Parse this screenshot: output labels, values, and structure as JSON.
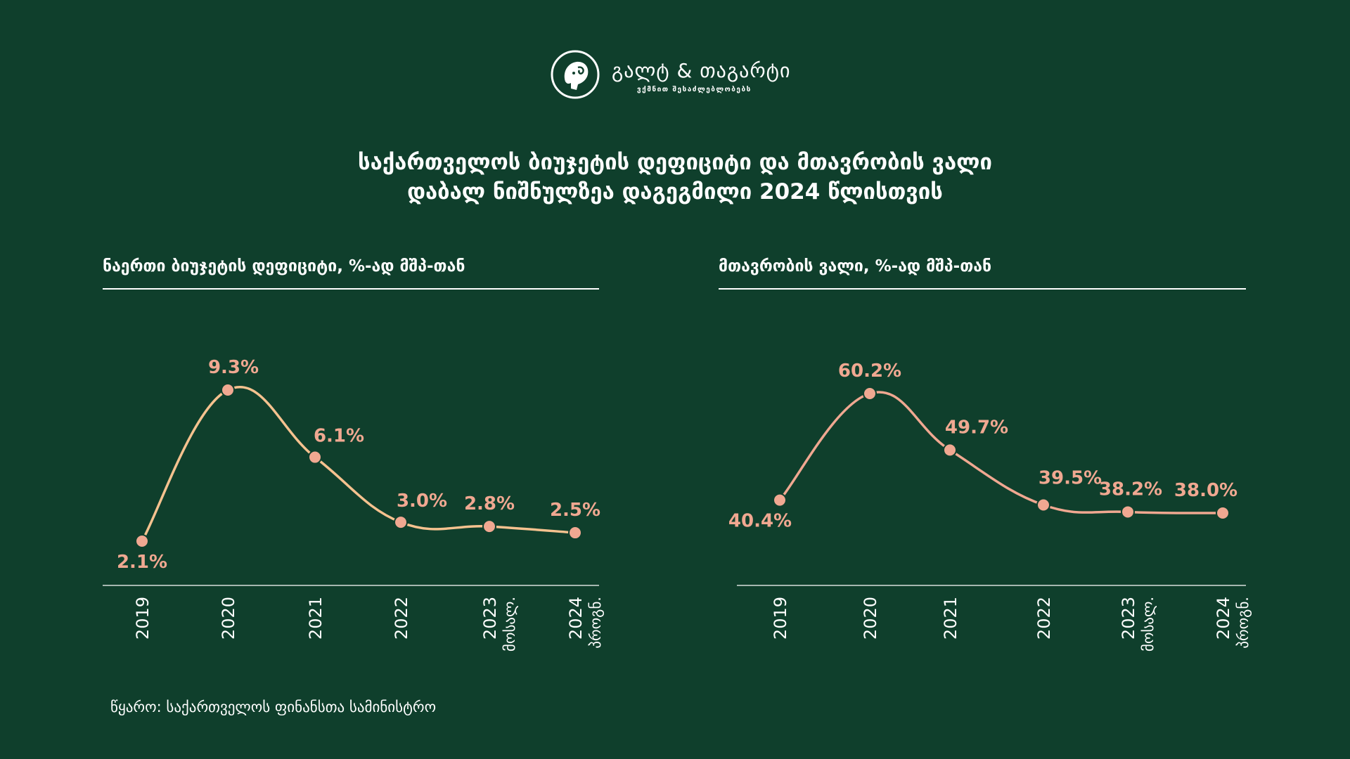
{
  "logo": {
    "name": "გალტ & თაგარტი",
    "tagline": "ვქმნით შესაძლებლობებს"
  },
  "title_line1": "საქართველოს ბიუჯეტის დეფიციტი და მთავრობის ვალი",
  "title_line2": "დაბალ ნიშნულზეა დაგეგმილი 2024 წლისთვის",
  "source": "წყარო: საქართველოს ფინანსთა სამინისტრო",
  "colors": {
    "background": "#0f3f2c",
    "text": "#ffffff",
    "line_left": "#f5c28f",
    "line_right": "#f0a891",
    "marker": "#f0a891",
    "label": "#f0a891"
  },
  "chart_data": [
    {
      "type": "line",
      "title": "ნაერთი ბიუჯეტის დეფიციტი, %-ად მშპ-თან",
      "categories": [
        "2019",
        "2020",
        "2021",
        "2022",
        "2023",
        "2024"
      ],
      "category_sublabels": [
        "",
        "",
        "",
        "",
        "მოსალ.",
        "პროგნ."
      ],
      "values": [
        2.1,
        9.3,
        6.1,
        3.0,
        2.8,
        2.5
      ],
      "data_labels": [
        "2.1%",
        "9.3%",
        "6.1%",
        "3.0%",
        "2.8%",
        "2.5%"
      ],
      "ylim": [
        1.5,
        10
      ],
      "grid": false,
      "legend": "none"
    },
    {
      "type": "line",
      "title": "მთავრობის ვალი, %-ად მშპ-თან",
      "categories": [
        "2019",
        "2020",
        "2021",
        "2022",
        "2023",
        "2024"
      ],
      "category_sublabels": [
        "",
        "",
        "",
        "",
        "მოსალ.",
        "პროგნ."
      ],
      "values": [
        40.4,
        60.2,
        49.7,
        39.5,
        38.2,
        38.0
      ],
      "data_labels": [
        "40.4%",
        "60.2%",
        "49.7%",
        "39.5%",
        "38.2%",
        "38.0%"
      ],
      "ylim": [
        35,
        62
      ],
      "grid": false,
      "legend": "none"
    }
  ]
}
